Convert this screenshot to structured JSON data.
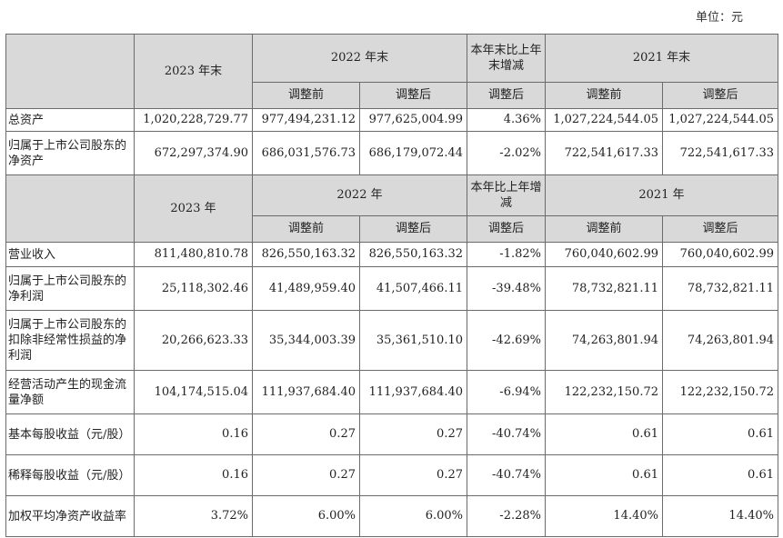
{
  "unit_label": "单位：元",
  "section1": {
    "headers": {
      "y2023": "2023 年末",
      "y2022": "2022 年末",
      "change": "本年末比上年末增减",
      "y2021": "2021 年末",
      "before": "调整前",
      "after": "调整后",
      "change_sub": "调整后"
    },
    "rows": [
      {
        "label": "总资产",
        "values": [
          "1,020,228,729.77",
          "977,494,231.12",
          "977,625,004.99",
          "4.36%",
          "1,027,224,544.05",
          "1,027,224,544.05"
        ]
      },
      {
        "label": "归属于上市公司股东的净资产",
        "values": [
          "672,297,374.90",
          "686,031,576.73",
          "686,179,072.44",
          "-2.02%",
          "722,541,617.33",
          "722,541,617.33"
        ]
      }
    ]
  },
  "section2": {
    "headers": {
      "y2023": "2023 年",
      "y2022": "2022 年",
      "change": "本年比上年增减",
      "y2021": "2021 年",
      "before": "调整前",
      "after": "调整后",
      "change_sub": "调整后"
    },
    "rows": [
      {
        "label": "营业收入",
        "values": [
          "811,480,810.78",
          "826,550,163.32",
          "826,550,163.32",
          "-1.82%",
          "760,040,602.99",
          "760,040,602.99"
        ]
      },
      {
        "label": "归属于上市公司股东的净利润",
        "values": [
          "25,118,302.46",
          "41,489,959.40",
          "41,507,466.11",
          "-39.48%",
          "78,732,821.11",
          "78,732,821.11"
        ]
      },
      {
        "label": "归属于上市公司股东的扣除非经常性损益的净利润",
        "values": [
          "20,266,623.33",
          "35,344,003.39",
          "35,361,510.10",
          "-42.69%",
          "74,263,801.94",
          "74,263,801.94"
        ]
      },
      {
        "label": "经营活动产生的现金流量净额",
        "values": [
          "104,174,515.04",
          "111,937,684.40",
          "111,937,684.40",
          "-6.94%",
          "122,232,150.72",
          "122,232,150.72"
        ]
      },
      {
        "label": "基本每股收益（元/股）",
        "values": [
          "0.16",
          "0.27",
          "0.27",
          "-40.74%",
          "0.61",
          "0.61"
        ]
      },
      {
        "label": "稀释每股收益（元/股）",
        "values": [
          "0.16",
          "0.27",
          "0.27",
          "-40.74%",
          "0.61",
          "0.61"
        ]
      },
      {
        "label": "加权平均净资产收益率",
        "values": [
          "3.72%",
          "6.00%",
          "6.00%",
          "-2.28%",
          "14.40%",
          "14.40%"
        ]
      }
    ]
  }
}
